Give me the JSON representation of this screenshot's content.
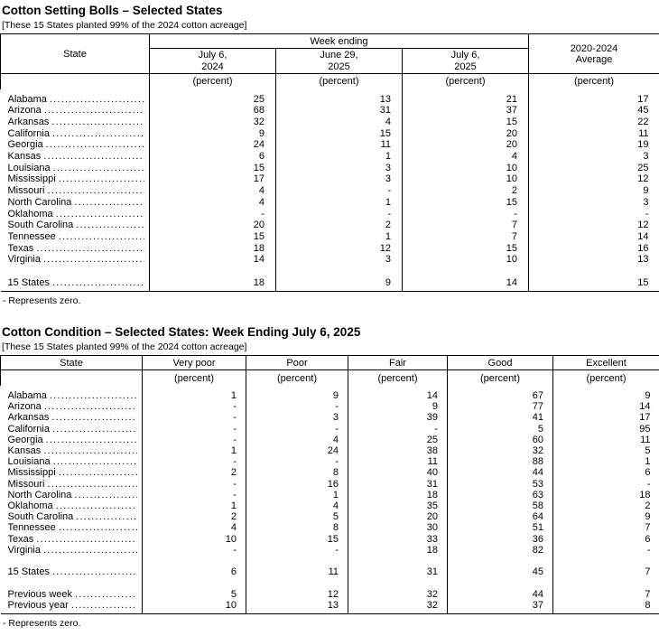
{
  "footnote": "- Represents zero.",
  "table1": {
    "title": "Cotton Setting Bolls – Selected States",
    "subtitle": "[These 15 States planted 99% of the 2024 cotton acreage]",
    "state_header": "State",
    "group_header": "Week ending",
    "columns": [
      "July 6,\n2024",
      "June 29,\n2025",
      "July 6,\n2025",
      "2020-2024\nAverage"
    ],
    "unit": "(percent)",
    "rows": [
      {
        "state": "Alabama",
        "values": [
          "25",
          "13",
          "21",
          "17"
        ]
      },
      {
        "state": "Arizona",
        "values": [
          "68",
          "31",
          "37",
          "45"
        ]
      },
      {
        "state": "Arkansas",
        "values": [
          "32",
          "4",
          "15",
          "22"
        ]
      },
      {
        "state": "California",
        "values": [
          "9",
          "15",
          "20",
          "11"
        ]
      },
      {
        "state": "Georgia",
        "values": [
          "24",
          "11",
          "20",
          "19"
        ]
      },
      {
        "state": "Kansas",
        "values": [
          "6",
          "1",
          "4",
          "3"
        ]
      },
      {
        "state": "Louisiana",
        "values": [
          "15",
          "3",
          "10",
          "25"
        ]
      },
      {
        "state": "Mississippi",
        "values": [
          "17",
          "3",
          "10",
          "12"
        ]
      },
      {
        "state": "Missouri",
        "values": [
          "4",
          "-",
          "2",
          "9"
        ]
      },
      {
        "state": "North Carolina",
        "values": [
          "4",
          "1",
          "15",
          "3"
        ]
      },
      {
        "state": "Oklahoma",
        "values": [
          "-",
          "-",
          "-",
          "-"
        ]
      },
      {
        "state": "South Carolina",
        "values": [
          "20",
          "2",
          "7",
          "12"
        ]
      },
      {
        "state": "Tennessee",
        "values": [
          "15",
          "1",
          "7",
          "14"
        ]
      },
      {
        "state": "Texas",
        "values": [
          "18",
          "12",
          "15",
          "16"
        ]
      },
      {
        "state": "Virginia",
        "values": [
          "14",
          "3",
          "10",
          "13"
        ]
      }
    ],
    "total_row": {
      "state": "15 States",
      "values": [
        "18",
        "9",
        "14",
        "15"
      ]
    }
  },
  "table2": {
    "title": "Cotton Condition – Selected States: Week Ending July 6, 2025",
    "subtitle": "[These 15 States planted 99% of the 2024 cotton acreage]",
    "state_header": "State",
    "columns": [
      "Very poor",
      "Poor",
      "Fair",
      "Good",
      "Excellent"
    ],
    "unit": "(percent)",
    "rows": [
      {
        "state": "Alabama",
        "values": [
          "1",
          "9",
          "14",
          "67",
          "9"
        ]
      },
      {
        "state": "Arizona",
        "values": [
          "-",
          "-",
          "9",
          "77",
          "14"
        ]
      },
      {
        "state": "Arkansas",
        "values": [
          "-",
          "3",
          "39",
          "41",
          "17"
        ]
      },
      {
        "state": "California",
        "values": [
          "-",
          "-",
          "-",
          "5",
          "95"
        ]
      },
      {
        "state": "Georgia",
        "values": [
          "-",
          "4",
          "25",
          "60",
          "11"
        ]
      },
      {
        "state": "Kansas",
        "values": [
          "1",
          "24",
          "38",
          "32",
          "5"
        ]
      },
      {
        "state": "Louisiana",
        "values": [
          "-",
          "-",
          "11",
          "88",
          "1"
        ]
      },
      {
        "state": "Mississippi",
        "values": [
          "2",
          "8",
          "40",
          "44",
          "6"
        ]
      },
      {
        "state": "Missouri",
        "values": [
          "-",
          "16",
          "31",
          "53",
          "-"
        ]
      },
      {
        "state": "North Carolina",
        "values": [
          "-",
          "1",
          "18",
          "63",
          "18"
        ]
      },
      {
        "state": "Oklahoma",
        "values": [
          "1",
          "4",
          "35",
          "58",
          "2"
        ]
      },
      {
        "state": "South Carolina",
        "values": [
          "2",
          "5",
          "20",
          "64",
          "9"
        ]
      },
      {
        "state": "Tennessee",
        "values": [
          "4",
          "8",
          "30",
          "51",
          "7"
        ]
      },
      {
        "state": "Texas",
        "values": [
          "10",
          "15",
          "33",
          "36",
          "6"
        ]
      },
      {
        "state": "Virginia",
        "values": [
          "-",
          "-",
          "18",
          "82",
          "-"
        ]
      }
    ],
    "total_row": {
      "state": "15 States",
      "values": [
        "6",
        "11",
        "31",
        "45",
        "7"
      ]
    },
    "extra_rows": [
      {
        "state": "Previous week",
        "values": [
          "5",
          "12",
          "32",
          "44",
          "7"
        ]
      },
      {
        "state": "Previous year",
        "values": [
          "10",
          "13",
          "32",
          "37",
          "8"
        ]
      }
    ]
  }
}
